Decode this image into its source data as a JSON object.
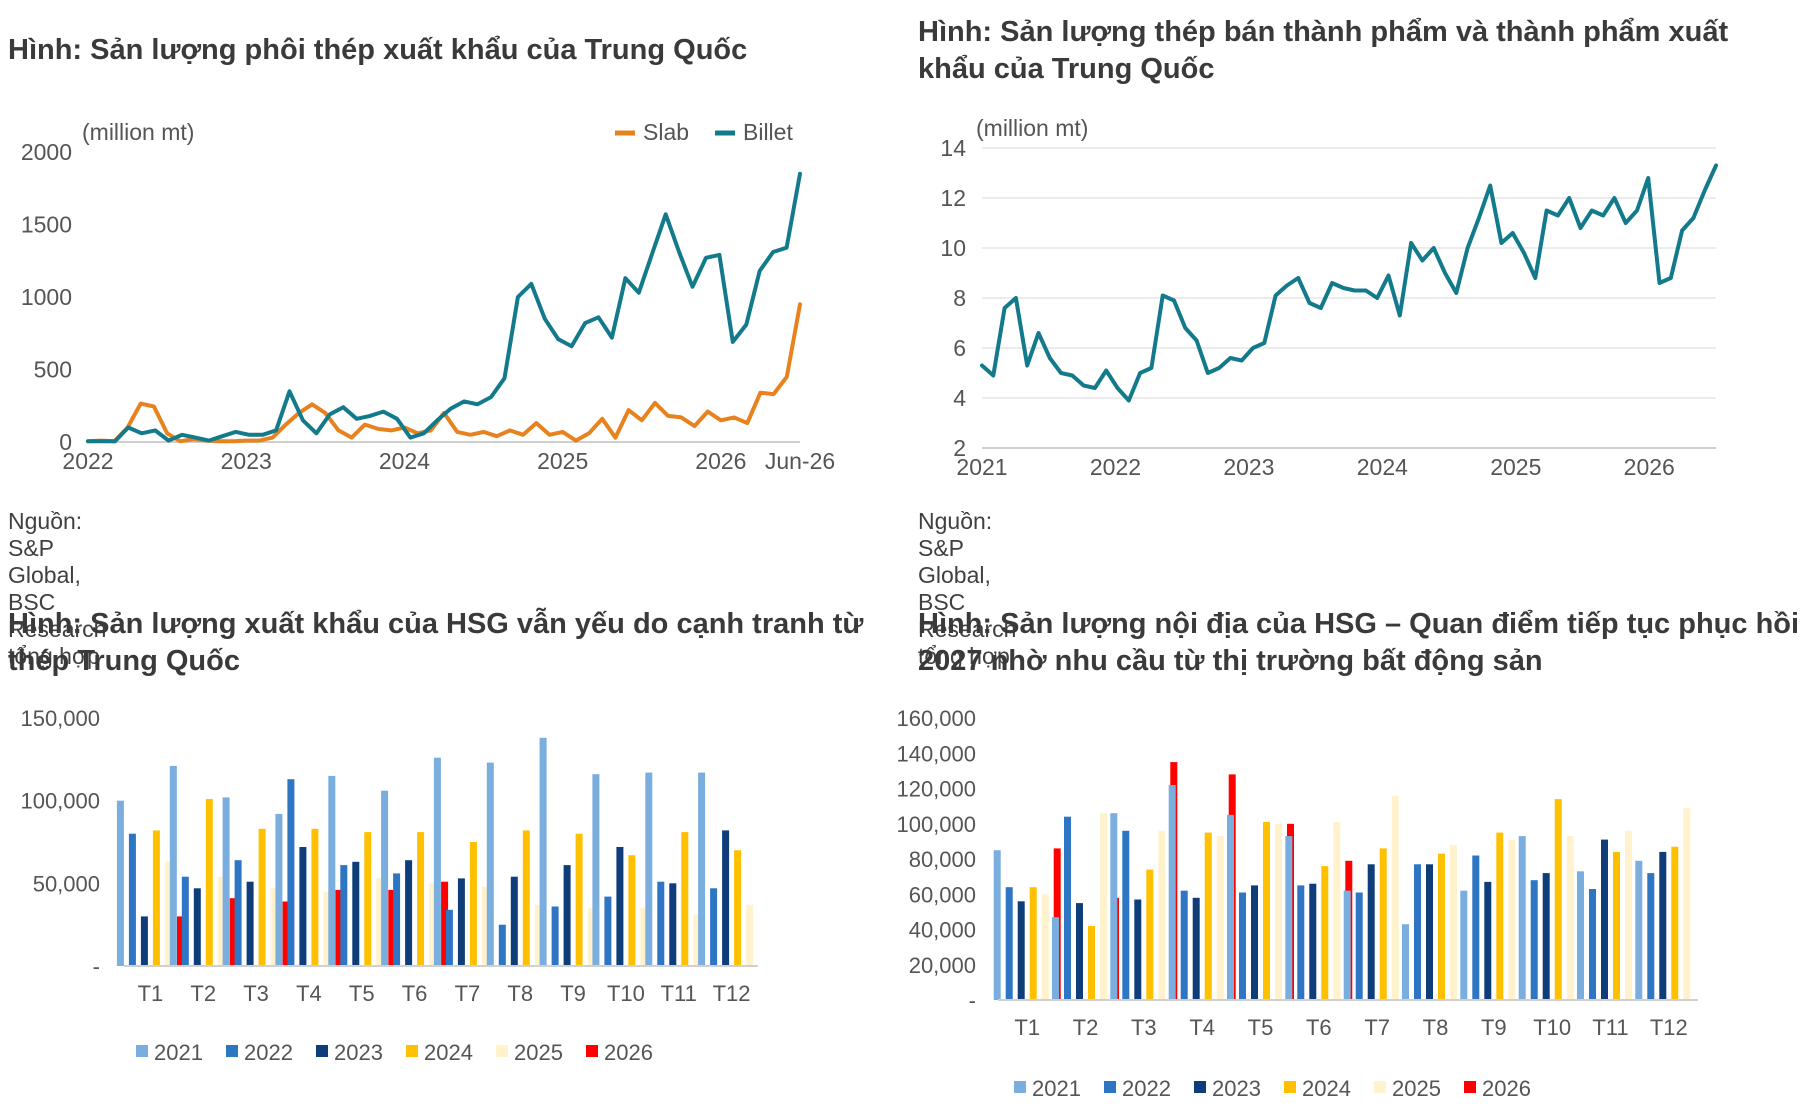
{
  "panels": {
    "p1": {
      "title": "Hình: Sản lượng phôi thép xuất khẩu của Trung Quốc",
      "unit": "(million mt)",
      "source": "Nguồn: S&P Global, BSC Research tổng hợp"
    },
    "p2": {
      "title": "Hình: Sản lượng thép bán thành phẩm và thành phẩm xuất khẩu của Trung Quốc",
      "unit": "(million mt)",
      "source": "Nguồn: S&P Global, BSC Research tổng hợp"
    },
    "p3": {
      "title": "Hình: Sản lượng xuất khẩu của HSG vẫn yếu do cạnh tranh từ thép Trung Quốc"
    },
    "p4": {
      "title": "Hình: Sản lượng nội địa của HSG – Quan điểm tiếp tục phục hồi 2027 nhờ nhu cầu từ thị trường bất động sản"
    }
  },
  "chart_data": [
    {
      "id": "p1",
      "type": "line",
      "ylim": [
        0,
        2000
      ],
      "yticks": [
        0,
        500,
        1000,
        1500,
        2000
      ],
      "ytick_labels": [
        "0",
        "500",
        "1000",
        "1500",
        "2000"
      ],
      "xlim": [
        2022.0,
        2026.5
      ],
      "xticks": [
        2022,
        2023,
        2024,
        2025,
        2026,
        2026.5
      ],
      "xtick_labels": [
        "2022",
        "2023",
        "2024",
        "2025",
        "2026",
        "Jun-26"
      ],
      "legend_position": "top-right",
      "series": [
        {
          "name": "Slab",
          "color": "#e8821e",
          "values": [
            5,
            10,
            5,
            100,
            265,
            245,
            60,
            5,
            20,
            10,
            5,
            5,
            10,
            10,
            30,
            120,
            200,
            260,
            200,
            80,
            30,
            120,
            90,
            80,
            100,
            60,
            80,
            200,
            70,
            50,
            70,
            40,
            80,
            50,
            130,
            50,
            70,
            10,
            60,
            160,
            30,
            220,
            150,
            270,
            180,
            170,
            110,
            210,
            150,
            170,
            130,
            340,
            330,
            450,
            950
          ]
        },
        {
          "name": "Billet",
          "color": "#137a8c",
          "values": [
            5,
            5,
            5,
            100,
            60,
            80,
            10,
            50,
            30,
            10,
            40,
            70,
            50,
            50,
            80,
            350,
            150,
            60,
            190,
            240,
            160,
            180,
            210,
            160,
            30,
            60,
            150,
            230,
            280,
            260,
            310,
            440,
            1000,
            1090,
            850,
            710,
            660,
            820,
            860,
            720,
            1130,
            1030,
            1300,
            1570,
            1310,
            1070,
            1270,
            1290,
            690,
            810,
            1180,
            1310,
            1340,
            1850
          ]
        }
      ]
    },
    {
      "id": "p2",
      "type": "line",
      "ylim": [
        2,
        14
      ],
      "yticks": [
        2,
        4,
        6,
        8,
        10,
        12,
        14
      ],
      "ytick_labels": [
        "2",
        "4",
        "6",
        "8",
        "10",
        "12",
        "14"
      ],
      "xlim": [
        2021.0,
        2026.5
      ],
      "xticks": [
        2021,
        2022,
        2023,
        2024,
        2025,
        2026
      ],
      "xtick_labels": [
        "2021",
        "2022",
        "2023",
        "2024",
        "2025",
        "2026"
      ],
      "series": [
        {
          "color": "#137a8c",
          "values": [
            5.3,
            4.9,
            7.6,
            8.0,
            5.3,
            6.6,
            5.6,
            5.0,
            4.9,
            4.5,
            4.4,
            5.1,
            4.4,
            3.9,
            5.0,
            5.2,
            8.1,
            7.9,
            6.8,
            6.3,
            5.0,
            5.2,
            5.6,
            5.5,
            6.0,
            6.2,
            8.1,
            8.5,
            8.8,
            7.8,
            7.6,
            8.6,
            8.4,
            8.3,
            8.3,
            8.0,
            8.9,
            7.3,
            10.2,
            9.5,
            10.0,
            9.0,
            8.2,
            10.0,
            11.2,
            12.5,
            10.2,
            10.6,
            9.8,
            8.8,
            11.5,
            11.3,
            12.0,
            10.8,
            11.5,
            11.3,
            12.0,
            11.0,
            11.5,
            12.8,
            8.6,
            8.8,
            10.7,
            11.2,
            12.3,
            13.3
          ]
        }
      ]
    },
    {
      "id": "p3",
      "type": "bar",
      "categories": [
        "T1",
        "T2",
        "T3",
        "T4",
        "T5",
        "T6",
        "T7",
        "T8",
        "T9",
        "T10",
        "T11",
        "T12"
      ],
      "ylim": [
        0,
        150000
      ],
      "yticks": [
        0,
        50000,
        100000,
        150000
      ],
      "ytick_labels": [
        "-",
        "50,000",
        "100,000",
        "150,000"
      ],
      "legend_position": "bottom",
      "series": [
        {
          "name": "2021",
          "color": "#7aaedf",
          "values": [
            100000,
            121000,
            102000,
            92000,
            115000,
            106000,
            126000,
            123000,
            138000,
            116000,
            117000,
            117000
          ]
        },
        {
          "name": "2022",
          "color": "#2e75c4",
          "values": [
            80000,
            54000,
            64000,
            113000,
            61000,
            56000,
            34000,
            25000,
            36000,
            42000,
            51000,
            47000
          ]
        },
        {
          "name": "2023",
          "color": "#0e3d7a",
          "values": [
            30000,
            47000,
            51000,
            72000,
            63000,
            64000,
            53000,
            54000,
            61000,
            72000,
            50000,
            82000
          ]
        },
        {
          "name": "2024",
          "color": "#ffc000",
          "values": [
            82000,
            101000,
            83000,
            83000,
            81000,
            81000,
            75000,
            82000,
            80000,
            67000,
            81000,
            70000
          ]
        },
        {
          "name": "2025",
          "color": "#fff2cc",
          "values": [
            63000,
            54000,
            47000,
            45000,
            53000,
            50000,
            48000,
            37000,
            35000,
            35000,
            31000,
            37000
          ]
        },
        {
          "name": "2026",
          "color": "#ff0000",
          "values": [
            30000,
            41000,
            39000,
            46000,
            46000,
            51000,
            null,
            null,
            null,
            null,
            null,
            null
          ]
        }
      ]
    },
    {
      "id": "p4",
      "type": "bar",
      "categories": [
        "T1",
        "T2",
        "T3",
        "T4",
        "T5",
        "T6",
        "T7",
        "T8",
        "T9",
        "T10",
        "T11",
        "T12"
      ],
      "ylim": [
        0,
        160000
      ],
      "yticks": [
        0,
        20000,
        40000,
        60000,
        80000,
        100000,
        120000,
        140000,
        160000
      ],
      "ytick_labels": [
        "-",
        "20,000",
        "40,000",
        "60,000",
        "80,000",
        "100,000",
        "120,000",
        "140,000",
        "160,000"
      ],
      "legend_position": "bottom",
      "series": [
        {
          "name": "2021",
          "color": "#7aaedf",
          "values": [
            85000,
            47000,
            106000,
            122000,
            105000,
            93000,
            62000,
            43000,
            62000,
            93000,
            73000,
            79000
          ]
        },
        {
          "name": "2022",
          "color": "#2e75c4",
          "values": [
            64000,
            104000,
            96000,
            62000,
            61000,
            65000,
            61000,
            77000,
            82000,
            68000,
            63000,
            72000
          ]
        },
        {
          "name": "2023",
          "color": "#0e3d7a",
          "values": [
            56000,
            55000,
            57000,
            58000,
            65000,
            66000,
            77000,
            77000,
            67000,
            72000,
            91000,
            84000
          ]
        },
        {
          "name": "2024",
          "color": "#ffc000",
          "values": [
            64000,
            42000,
            74000,
            95000,
            101000,
            76000,
            86000,
            83000,
            95000,
            114000,
            84000,
            87000
          ]
        },
        {
          "name": "2025",
          "color": "#fff2cc",
          "values": [
            60000,
            106000,
            96000,
            93000,
            100000,
            101000,
            116000,
            88000,
            91000,
            93000,
            96000,
            109000
          ]
        },
        {
          "name": "2026",
          "color": "#ff0000",
          "values": [
            86000,
            58000,
            135000,
            128000,
            100000,
            79000,
            null,
            null,
            null,
            null,
            null,
            null
          ]
        }
      ]
    }
  ]
}
